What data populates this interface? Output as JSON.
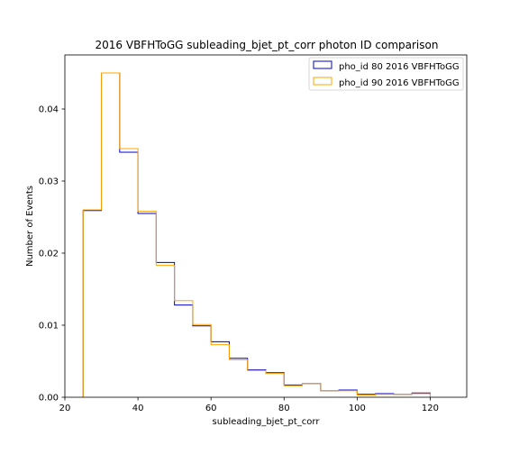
{
  "chart_data": {
    "type": "line",
    "step": "histogram",
    "title": "2016 VBFHToGG subleading_bjet_pt_corr photon ID comparison",
    "xlabel": "subleading_bjet_pt_corr",
    "ylabel": "Number of Events",
    "xlim": [
      20,
      130
    ],
    "ylim": [
      0,
      0.0475
    ],
    "xticks": [
      20,
      40,
      60,
      80,
      100,
      120
    ],
    "yticks": [
      0.0,
      0.01,
      0.02,
      0.03,
      0.04
    ],
    "xtick_labels": [
      "20",
      "40",
      "60",
      "80",
      "100",
      "120"
    ],
    "ytick_labels": [
      "0.00",
      "0.01",
      "0.02",
      "0.03",
      "0.04"
    ],
    "bin_edges": [
      25,
      30,
      35,
      40,
      45,
      50,
      55,
      60,
      65,
      70,
      75,
      80,
      85,
      90,
      95,
      100,
      105,
      110,
      115,
      120
    ],
    "legend_position": "top-right",
    "series": [
      {
        "name": "pho_id 80 2016 VBFHToGG",
        "color": "#0000cc",
        "values": [
          0.0259,
          0.045,
          0.034,
          0.0255,
          0.0187,
          0.0128,
          0.0099,
          0.0077,
          0.0054,
          0.0038,
          0.0034,
          0.0017,
          0.0019,
          0.0009,
          0.001,
          0.0004,
          0.0005,
          0.0004,
          0.0006
        ]
      },
      {
        "name": "pho_id 90 2016 VBFHToGG",
        "color": "#ffa500",
        "values": [
          0.026,
          0.045,
          0.0345,
          0.0258,
          0.0183,
          0.0134,
          0.0101,
          0.0073,
          0.0052,
          0.0037,
          0.0033,
          0.0016,
          0.0019,
          0.0009,
          0.0009,
          0.0003,
          0.0004,
          0.0004,
          0.0005
        ]
      }
    ]
  }
}
